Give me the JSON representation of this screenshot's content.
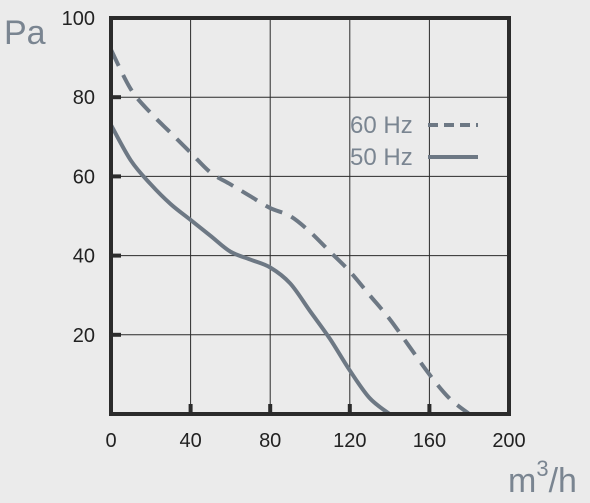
{
  "chart_data": {
    "type": "line",
    "title": "",
    "ylabel": "Pa",
    "xlabel": "m³/h",
    "xlabel_base": "m",
    "xlabel_exp": "3",
    "xlabel_rest": "/h",
    "xlim": [
      0,
      200
    ],
    "ylim": [
      0,
      100
    ],
    "xticks": [
      0,
      40,
      80,
      120,
      160,
      200
    ],
    "yticks": [
      20,
      40,
      60,
      80,
      100
    ],
    "grid": true,
    "legend_position": "top-right",
    "colors": {
      "background": "#ebebeb",
      "axis": "#2b2b2b",
      "grid": "#2b2b2b",
      "series": "#6d7884",
      "label": "#7a8591"
    },
    "series": [
      {
        "name": "60 Hz",
        "style": "dashed",
        "x": [
          0,
          10,
          20,
          30,
          40,
          50,
          60,
          70,
          80,
          90,
          100,
          110,
          120,
          130,
          140,
          150,
          160,
          170,
          180
        ],
        "y": [
          92,
          82,
          76,
          71,
          66,
          61,
          58,
          55,
          52,
          50,
          46,
          41,
          36,
          30,
          24,
          17,
          10,
          4,
          0
        ]
      },
      {
        "name": "50 Hz",
        "style": "solid",
        "x": [
          0,
          10,
          20,
          30,
          40,
          50,
          60,
          70,
          80,
          90,
          100,
          110,
          120,
          130,
          140,
          145
        ],
        "y": [
          73,
          64,
          58,
          53,
          49,
          45,
          41,
          39,
          37,
          33,
          26,
          19,
          11,
          4,
          0,
          0
        ]
      }
    ]
  }
}
